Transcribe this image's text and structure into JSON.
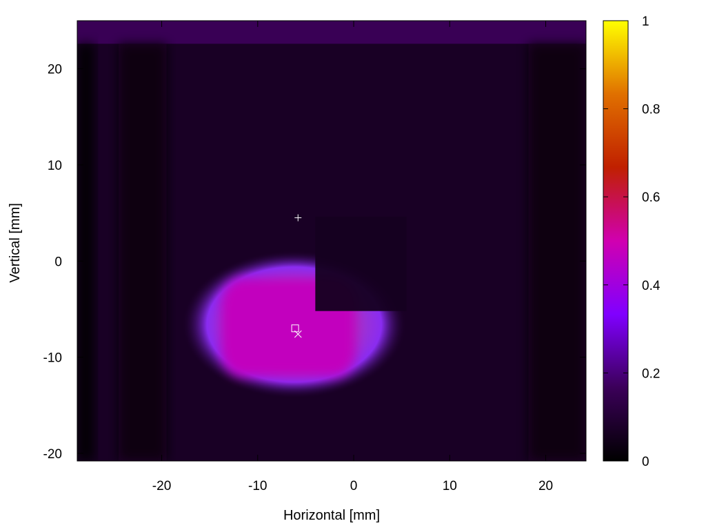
{
  "chart_data": {
    "type": "heatmap",
    "title": "",
    "xlabel": "Horizontal [mm]",
    "ylabel": "Vertical [mm]",
    "xlim": [
      -28.8,
      24.2
    ],
    "ylim": [
      -20.8,
      25.0
    ],
    "x_ticks": [
      -20,
      -10,
      0,
      10,
      20
    ],
    "y_ticks": [
      -20,
      -10,
      0,
      10,
      20
    ],
    "x_tick_labels": [
      "-20",
      "-10",
      "0",
      "10",
      "20"
    ],
    "y_tick_labels": [
      "-20",
      "-10",
      "0",
      "10",
      "20"
    ],
    "colorbar": {
      "range": [
        0,
        1
      ],
      "ticks": [
        0,
        0.2,
        0.4,
        0.6,
        0.8,
        1
      ],
      "tick_labels": [
        "0",
        "0.2",
        "0.4",
        "0.6",
        "0.8",
        "1"
      ],
      "palette": [
        "#000000",
        "#3b0059",
        "#8000ff",
        "#d000b0",
        "#c02000",
        "#e07000",
        "#ffff00"
      ]
    },
    "background_level": 0.07,
    "top_band": {
      "y_from": 22.6,
      "level": 0.16
    },
    "side_shadows": [
      {
        "x_from": -28.8,
        "x_to": -27.0,
        "level": 0.0
      },
      {
        "x_from": -24.5,
        "x_to": -19.5,
        "level": 0.02
      },
      {
        "x_from": 18.2,
        "x_to": 24.2,
        "level": 0.02
      }
    ],
    "beam_spot": {
      "center": [
        -6.2,
        -6.6
      ],
      "semi_axes": [
        10.4,
        6.5
      ],
      "peak_level": 0.47,
      "core_region": {
        "x_range": [
          -13.8,
          0.2
        ],
        "y_range": [
          -12.0,
          -1.8
        ]
      },
      "blocked_region": {
        "x_range": [
          -4.0,
          5.5
        ],
        "y_range": [
          -5.2,
          4.6
        ],
        "level": 0.06
      }
    },
    "shadow_lines_vertical": [
      {
        "x": -9.7,
        "y_range": [
          -20.8,
          22.6
        ]
      },
      {
        "x": 0.0,
        "y_range": [
          -20.8,
          22.6
        ]
      },
      {
        "x": -20.0,
        "y_range": [
          -20.8,
          22.6
        ]
      },
      {
        "x": -4.1,
        "y_range": [
          -5.4,
          4.6
        ]
      },
      {
        "x": 5.3,
        "y_range": [
          -5.8,
          4.6
        ]
      }
    ],
    "shadow_lines_horizontal": [
      {
        "y": -10.8,
        "x_range": [
          -17.0,
          22.0
        ]
      },
      {
        "y": 0.0,
        "x_range": [
          -16.0,
          18.0
        ]
      },
      {
        "y": 9.8,
        "x_range": [
          -16.0,
          18.0
        ]
      },
      {
        "y": 19.2,
        "x_range": [
          -18.0,
          18.0
        ]
      },
      {
        "y": -5.5,
        "x_range": [
          -4.0,
          5.3
        ]
      },
      {
        "y": 4.5,
        "x_range": [
          -4.1,
          5.3
        ]
      }
    ],
    "markers": [
      {
        "symbol": "plus",
        "x": -5.8,
        "y": 4.5
      },
      {
        "symbol": "square",
        "x": -6.1,
        "y": -7.0
      },
      {
        "symbol": "cross",
        "x": -5.8,
        "y": -7.6
      }
    ],
    "grid": false,
    "legend": "none"
  }
}
